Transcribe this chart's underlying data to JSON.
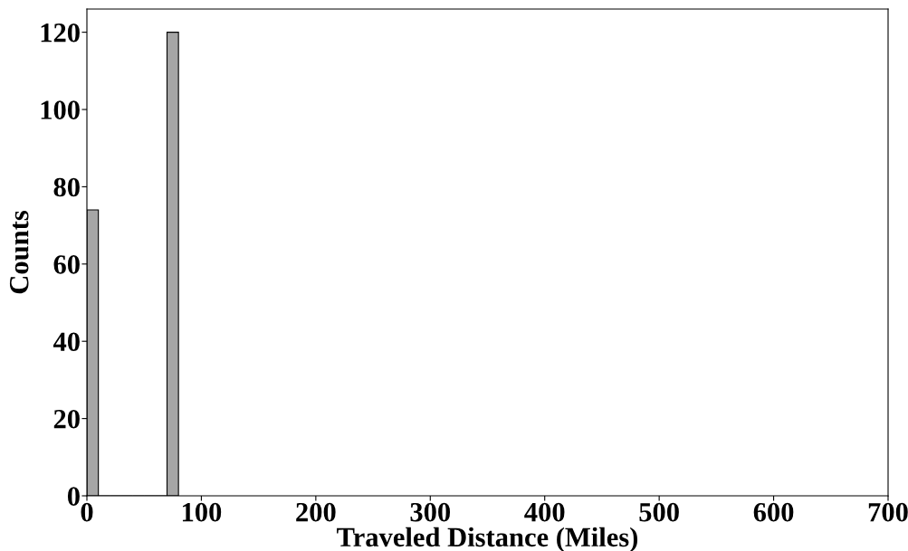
{
  "chart_data": {
    "type": "histogram",
    "xlabel": "Traveled Distance (Miles)",
    "ylabel": "Counts",
    "bins": [
      0,
      10,
      20,
      30,
      40,
      50,
      60,
      70,
      80
    ],
    "values": [
      74,
      0,
      0,
      0,
      0,
      0,
      0,
      120
    ],
    "color": "#a6a6a6",
    "xlim": [
      0,
      700
    ],
    "xticks": [
      0,
      100,
      200,
      300,
      400,
      500,
      600,
      700
    ],
    "ylim": [
      0,
      126
    ],
    "yticks": [
      0,
      20,
      40,
      60,
      80,
      100,
      120
    ],
    "grid": false
  }
}
